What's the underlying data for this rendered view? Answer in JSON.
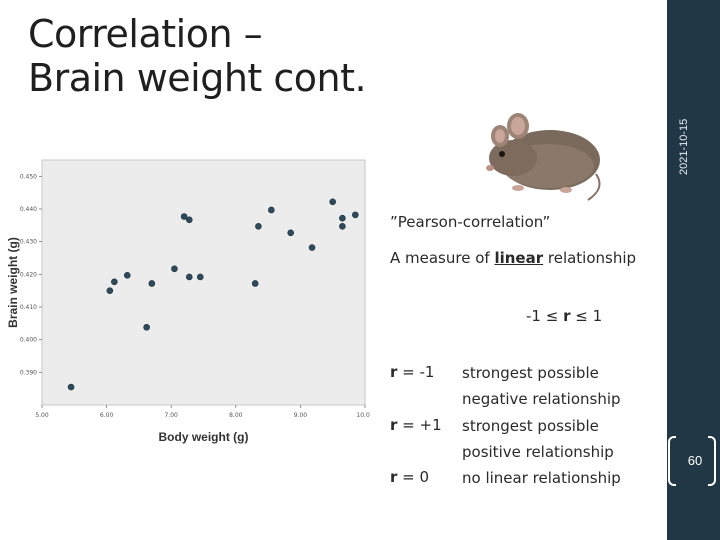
{
  "slide": {
    "title_line1": "Correlation –",
    "title_line2": "Brain weight cont.",
    "date": "2021-10-15",
    "page_number": "60",
    "image_label": "mouse photo"
  },
  "text": {
    "quote": "”Pearson-correlation”",
    "definition_prefix": "A measure of ",
    "definition_emph": "linear",
    "definition_suffix": " relationship",
    "range_prefix": "-1 ≤ ",
    "range_var": "r",
    "range_suffix": " ≤ 1",
    "rows": [
      {
        "r_var": "r",
        "r_value": " = -1",
        "desc": "strongest possible negative relationship"
      },
      {
        "r_var": "r",
        "r_value": " = +1",
        "desc": "strongest possible positive relationship"
      },
      {
        "r_var": "r",
        "r_value": " = 0",
        "desc": "no linear relationship"
      }
    ]
  },
  "colors": {
    "sidebar": "#213746",
    "point": "#2f4a5a",
    "plot_bg": "#ececec"
  },
  "chart_data": {
    "type": "scatter",
    "xlabel": "Body weight (g)",
    "ylabel": "Brain weight (g)",
    "xlim": [
      5.0,
      10.0
    ],
    "ylim": [
      0.38,
      0.455
    ],
    "x_ticks": [
      "5.00",
      "6.00",
      "7.00",
      "8.00",
      "9.00",
      "10.00"
    ],
    "y_ticks": [
      "0.390",
      "0.400",
      "0.410",
      "0.420",
      "0.430",
      "0.440",
      "0.450"
    ],
    "points": [
      {
        "x": 5.45,
        "y": 0.3855
      },
      {
        "x": 6.05,
        "y": 0.415
      },
      {
        "x": 6.12,
        "y": 0.4177
      },
      {
        "x": 6.32,
        "y": 0.4197
      },
      {
        "x": 6.62,
        "y": 0.4038
      },
      {
        "x": 6.7,
        "y": 0.4172
      },
      {
        "x": 7.05,
        "y": 0.4217
      },
      {
        "x": 7.2,
        "y": 0.4377
      },
      {
        "x": 7.28,
        "y": 0.4367
      },
      {
        "x": 7.28,
        "y": 0.4192
      },
      {
        "x": 7.45,
        "y": 0.4192
      },
      {
        "x": 8.3,
        "y": 0.4172
      },
      {
        "x": 8.35,
        "y": 0.4347
      },
      {
        "x": 8.55,
        "y": 0.4397
      },
      {
        "x": 8.85,
        "y": 0.4327
      },
      {
        "x": 9.18,
        "y": 0.4282
      },
      {
        "x": 9.5,
        "y": 0.4422
      },
      {
        "x": 9.65,
        "y": 0.4347
      },
      {
        "x": 9.65,
        "y": 0.4372
      },
      {
        "x": 9.85,
        "y": 0.4382
      }
    ]
  }
}
